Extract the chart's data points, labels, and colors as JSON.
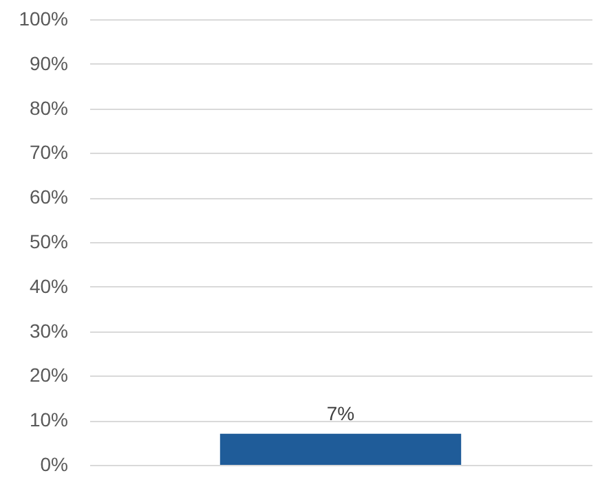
{
  "chart_data": {
    "type": "bar",
    "categories": [
      null
    ],
    "values": [
      7
    ],
    "value_labels": [
      "7%"
    ],
    "color": "#1f5c99",
    "ylim": [
      0,
      100
    ],
    "yticks": [
      {
        "value": 0,
        "label": "0%"
      },
      {
        "value": 10,
        "label": "10%"
      },
      {
        "value": 20,
        "label": "20%"
      },
      {
        "value": 30,
        "label": "30%"
      },
      {
        "value": 40,
        "label": "40%"
      },
      {
        "value": 50,
        "label": "50%"
      },
      {
        "value": 60,
        "label": "60%"
      },
      {
        "value": 70,
        "label": "70%"
      },
      {
        "value": 80,
        "label": "80%"
      },
      {
        "value": 90,
        "label": "90%"
      },
      {
        "value": 100,
        "label": "100%"
      }
    ],
    "grid": "y"
  }
}
